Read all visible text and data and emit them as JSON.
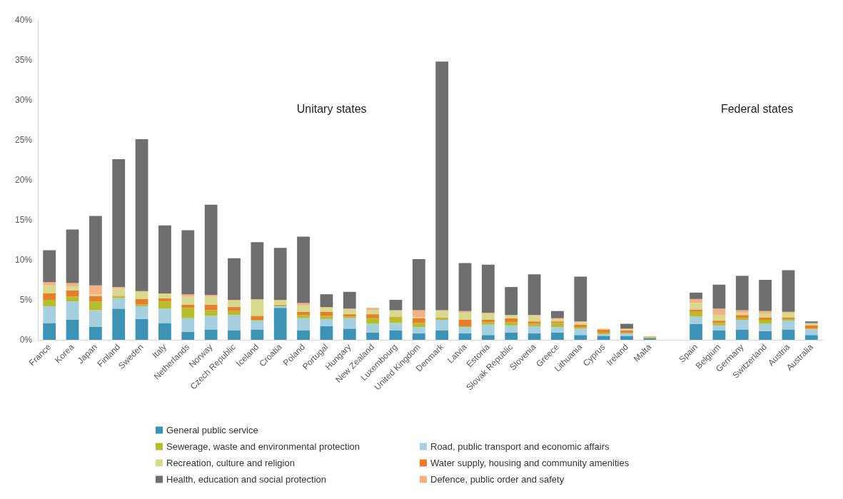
{
  "chart_data": {
    "type": "bar",
    "stacked": true,
    "categories": [
      "France",
      "Korea",
      "Japan",
      "Finland",
      "Sweden",
      "Italy",
      "Netherlands",
      "Norway",
      "Czech Republic",
      "Iceland",
      "Croatia",
      "Poland",
      "Portugal",
      "Hungary",
      "New Zealand",
      "Luxembourg",
      "United Kingdom",
      "Denmark",
      "Latvia",
      "Estonia",
      "Slovak Republic",
      "Slovenia",
      "Greece",
      "Lithuania",
      "Cyprus",
      "Ireland",
      "Malta",
      null,
      "Spain",
      "Belgium",
      "Germany",
      "Switzerland",
      "Austria",
      "Australia"
    ],
    "series": [
      {
        "name": "General public service",
        "color": "#3d93b5",
        "values": [
          2.1,
          2.5,
          1.6,
          3.9,
          2.6,
          2.1,
          1.0,
          1.3,
          1.2,
          1.3,
          4.0,
          1.2,
          1.7,
          1.4,
          0.9,
          1.2,
          0.8,
          1.2,
          0.8,
          0.6,
          0.9,
          0.8,
          0.9,
          0.6,
          0.5,
          0.5,
          0.2,
          null,
          2.0,
          1.2,
          1.3,
          1.1,
          1.3,
          0.6
        ]
      },
      {
        "name": "Road, public transport and economic affairs",
        "color": "#a6cfe0",
        "values": [
          2.1,
          2.3,
          2.1,
          1.3,
          1.6,
          1.8,
          1.7,
          1.7,
          1.9,
          1.1,
          0.2,
          1.5,
          0.9,
          1.3,
          1.1,
          0.9,
          0.8,
          1.3,
          0.8,
          1.3,
          0.9,
          0.9,
          0.7,
          0.8,
          0.2,
          0.3,
          null,
          null,
          0.9,
          0.6,
          1.2,
          0.9,
          1.1,
          0.7
        ]
      },
      {
        "name": "Sewerage, waste and environmental protection",
        "color": "#b5bd2a",
        "values": [
          0.8,
          0.6,
          1.1,
          0.2,
          0.2,
          0.9,
          1.3,
          0.7,
          0.5,
          0.1,
          0.1,
          0.4,
          0.4,
          0.2,
          0.7,
          0.7,
          0.5,
          0.2,
          0.1,
          0.3,
          0.4,
          0.3,
          0.5,
          0.2,
          0.2,
          0.1,
          0.1,
          null,
          0.6,
          0.3,
          0.2,
          0.5,
          0.2,
          0.1
        ]
      },
      {
        "name": "Water supply, housing and community amenities",
        "color": "#e87d2a",
        "values": [
          0.8,
          0.8,
          0.7,
          0.1,
          0.7,
          0.4,
          0.4,
          0.7,
          0.5,
          0.5,
          0.1,
          0.4,
          0.5,
          0.3,
          0.5,
          0.1,
          0.6,
          0.1,
          0.8,
          0.3,
          0.5,
          0.3,
          0.2,
          0.3,
          0.4,
          0.3,
          0.1,
          null,
          0.3,
          0.3,
          0.4,
          0.3,
          0.2,
          0.4
        ]
      },
      {
        "name": "Recreation, culture and religion",
        "color": "#d6da8c",
        "values": [
          1.0,
          0.5,
          0.2,
          0.9,
          0.9,
          0.5,
          1.0,
          1.0,
          0.8,
          2.0,
          0.5,
          0.8,
          0.5,
          0.6,
          0.5,
          0.8,
          0.1,
          0.8,
          0.9,
          0.8,
          0.4,
          0.7,
          0.3,
          0.3,
          0.1,
          0.1,
          0,
          null,
          0.8,
          0.7,
          0.3,
          0.5,
          0.6,
          0.2
        ]
      },
      {
        "name": "Defence, public order and safety",
        "color": "#f4b183",
        "values": [
          0.4,
          0.4,
          1.1,
          0.2,
          0.1,
          0.1,
          0.3,
          0.2,
          0.1,
          0.1,
          0.1,
          0.3,
          0.1,
          0.1,
          0.3,
          0,
          0.9,
          0.1,
          0.2,
          0.1,
          0,
          0.1,
          0.1,
          0.1,
          0,
          0.1,
          0,
          null,
          0.5,
          0.8,
          0.3,
          0.3,
          0.1,
          0.1
        ]
      },
      {
        "name": "Health, education and social protection",
        "color": "#6e6e6e",
        "values": [
          4.0,
          6.7,
          8.7,
          16.0,
          19.0,
          8.5,
          8.0,
          11.3,
          5.2,
          7.1,
          6.5,
          8.3,
          1.6,
          2.1,
          0,
          1.3,
          6.4,
          31.1,
          6.0,
          6.0,
          3.5,
          5.1,
          0.9,
          5.6,
          0,
          0.6,
          0,
          null,
          0.8,
          3.0,
          4.3,
          3.9,
          5.2,
          0.2
        ]
      }
    ],
    "ylim": [
      0,
      40
    ],
    "yticks": [
      {
        "value": 0,
        "label": "0%"
      },
      {
        "value": 5,
        "label": "5%"
      },
      {
        "value": 10,
        "label": "10%"
      },
      {
        "value": 15,
        "label": "15%"
      },
      {
        "value": 20,
        "label": "20%"
      },
      {
        "value": 25,
        "label": "25%"
      },
      {
        "value": 30,
        "label": "30%"
      },
      {
        "value": 35,
        "label": "35%"
      },
      {
        "value": 40,
        "label": "40%"
      }
    ],
    "grid": false,
    "legend": "bottom",
    "annotations": [
      "Unitary states",
      "Federal states"
    ]
  }
}
